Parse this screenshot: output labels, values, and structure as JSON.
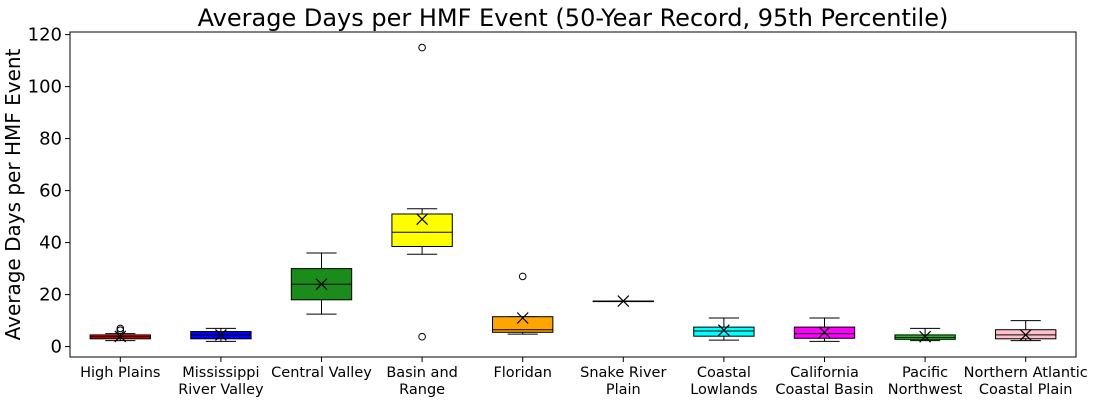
{
  "chart_data": {
    "type": "box",
    "title": "Average Days per HMF Event (50-Year Record, 95th Percentile)",
    "xlabel": "",
    "ylabel": "Average Days per HMF Event",
    "ylim": [
      -4,
      121
    ],
    "yticks": [
      0,
      20,
      40,
      60,
      80,
      100,
      120
    ],
    "grid": false,
    "mean_marker": "x",
    "categories": [
      [
        "High Plains"
      ],
      [
        "Mississippi",
        "River Valley"
      ],
      [
        "Central Valley"
      ],
      [
        "Basin and",
        "Range"
      ],
      [
        "Floridan"
      ],
      [
        "Snake River",
        "Plain"
      ],
      [
        "Coastal",
        "Lowlands"
      ],
      [
        "California",
        "Coastal Basin"
      ],
      [
        "Pacific",
        "Northwest"
      ],
      [
        "Northern Atlantic",
        "Coastal Plain"
      ]
    ],
    "boxes": [
      {
        "color": "#ff0000",
        "whislo": 2.3,
        "q1": 3.0,
        "median": 3.8,
        "q3": 4.5,
        "whishi": 5.0,
        "mean": 3.9,
        "fliers": [
          6.3,
          7.0
        ]
      },
      {
        "color": "#0000ff",
        "whislo": 2.0,
        "q1": 3.0,
        "median": 4.5,
        "q3": 5.8,
        "whishi": 7.0,
        "mean": 4.5,
        "fliers": []
      },
      {
        "color": "#1a8c1a",
        "whislo": 12.5,
        "q1": 18.0,
        "median": 24.0,
        "q3": 30.0,
        "whishi": 36.0,
        "mean": 24.0,
        "fliers": []
      },
      {
        "color": "#ffff00",
        "whislo": 35.5,
        "q1": 38.5,
        "median": 44.0,
        "q3": 51.0,
        "whishi": 53.0,
        "mean": 49.0,
        "fliers": [
          115.0,
          3.8
        ]
      },
      {
        "color": "#ffa500",
        "whislo": 4.8,
        "q1": 5.5,
        "median": 6.5,
        "q3": 11.5,
        "whishi": 11.5,
        "mean": 11.0,
        "fliers": [
          27.0
        ]
      },
      {
        "color": "#808080",
        "whislo": 17.5,
        "q1": 17.5,
        "median": 17.5,
        "q3": 17.5,
        "whishi": 17.5,
        "mean": 17.5,
        "fliers": []
      },
      {
        "color": "#00ffff",
        "whislo": 2.5,
        "q1": 4.0,
        "median": 6.0,
        "q3": 7.5,
        "whishi": 11.0,
        "mean": 6.3,
        "fliers": []
      },
      {
        "color": "#ff00ff",
        "whislo": 2.0,
        "q1": 3.2,
        "median": 5.0,
        "q3": 7.5,
        "whishi": 11.0,
        "mean": 5.5,
        "fliers": []
      },
      {
        "color": "#00cc00",
        "whislo": 2.3,
        "q1": 2.8,
        "median": 3.5,
        "q3": 4.5,
        "whishi": 7.0,
        "mean": 3.8,
        "fliers": []
      },
      {
        "color": "#ffc0cb",
        "whislo": 2.3,
        "q1": 3.0,
        "median": 4.5,
        "q3": 6.5,
        "whishi": 10.0,
        "mean": 4.5,
        "fliers": []
      }
    ]
  }
}
